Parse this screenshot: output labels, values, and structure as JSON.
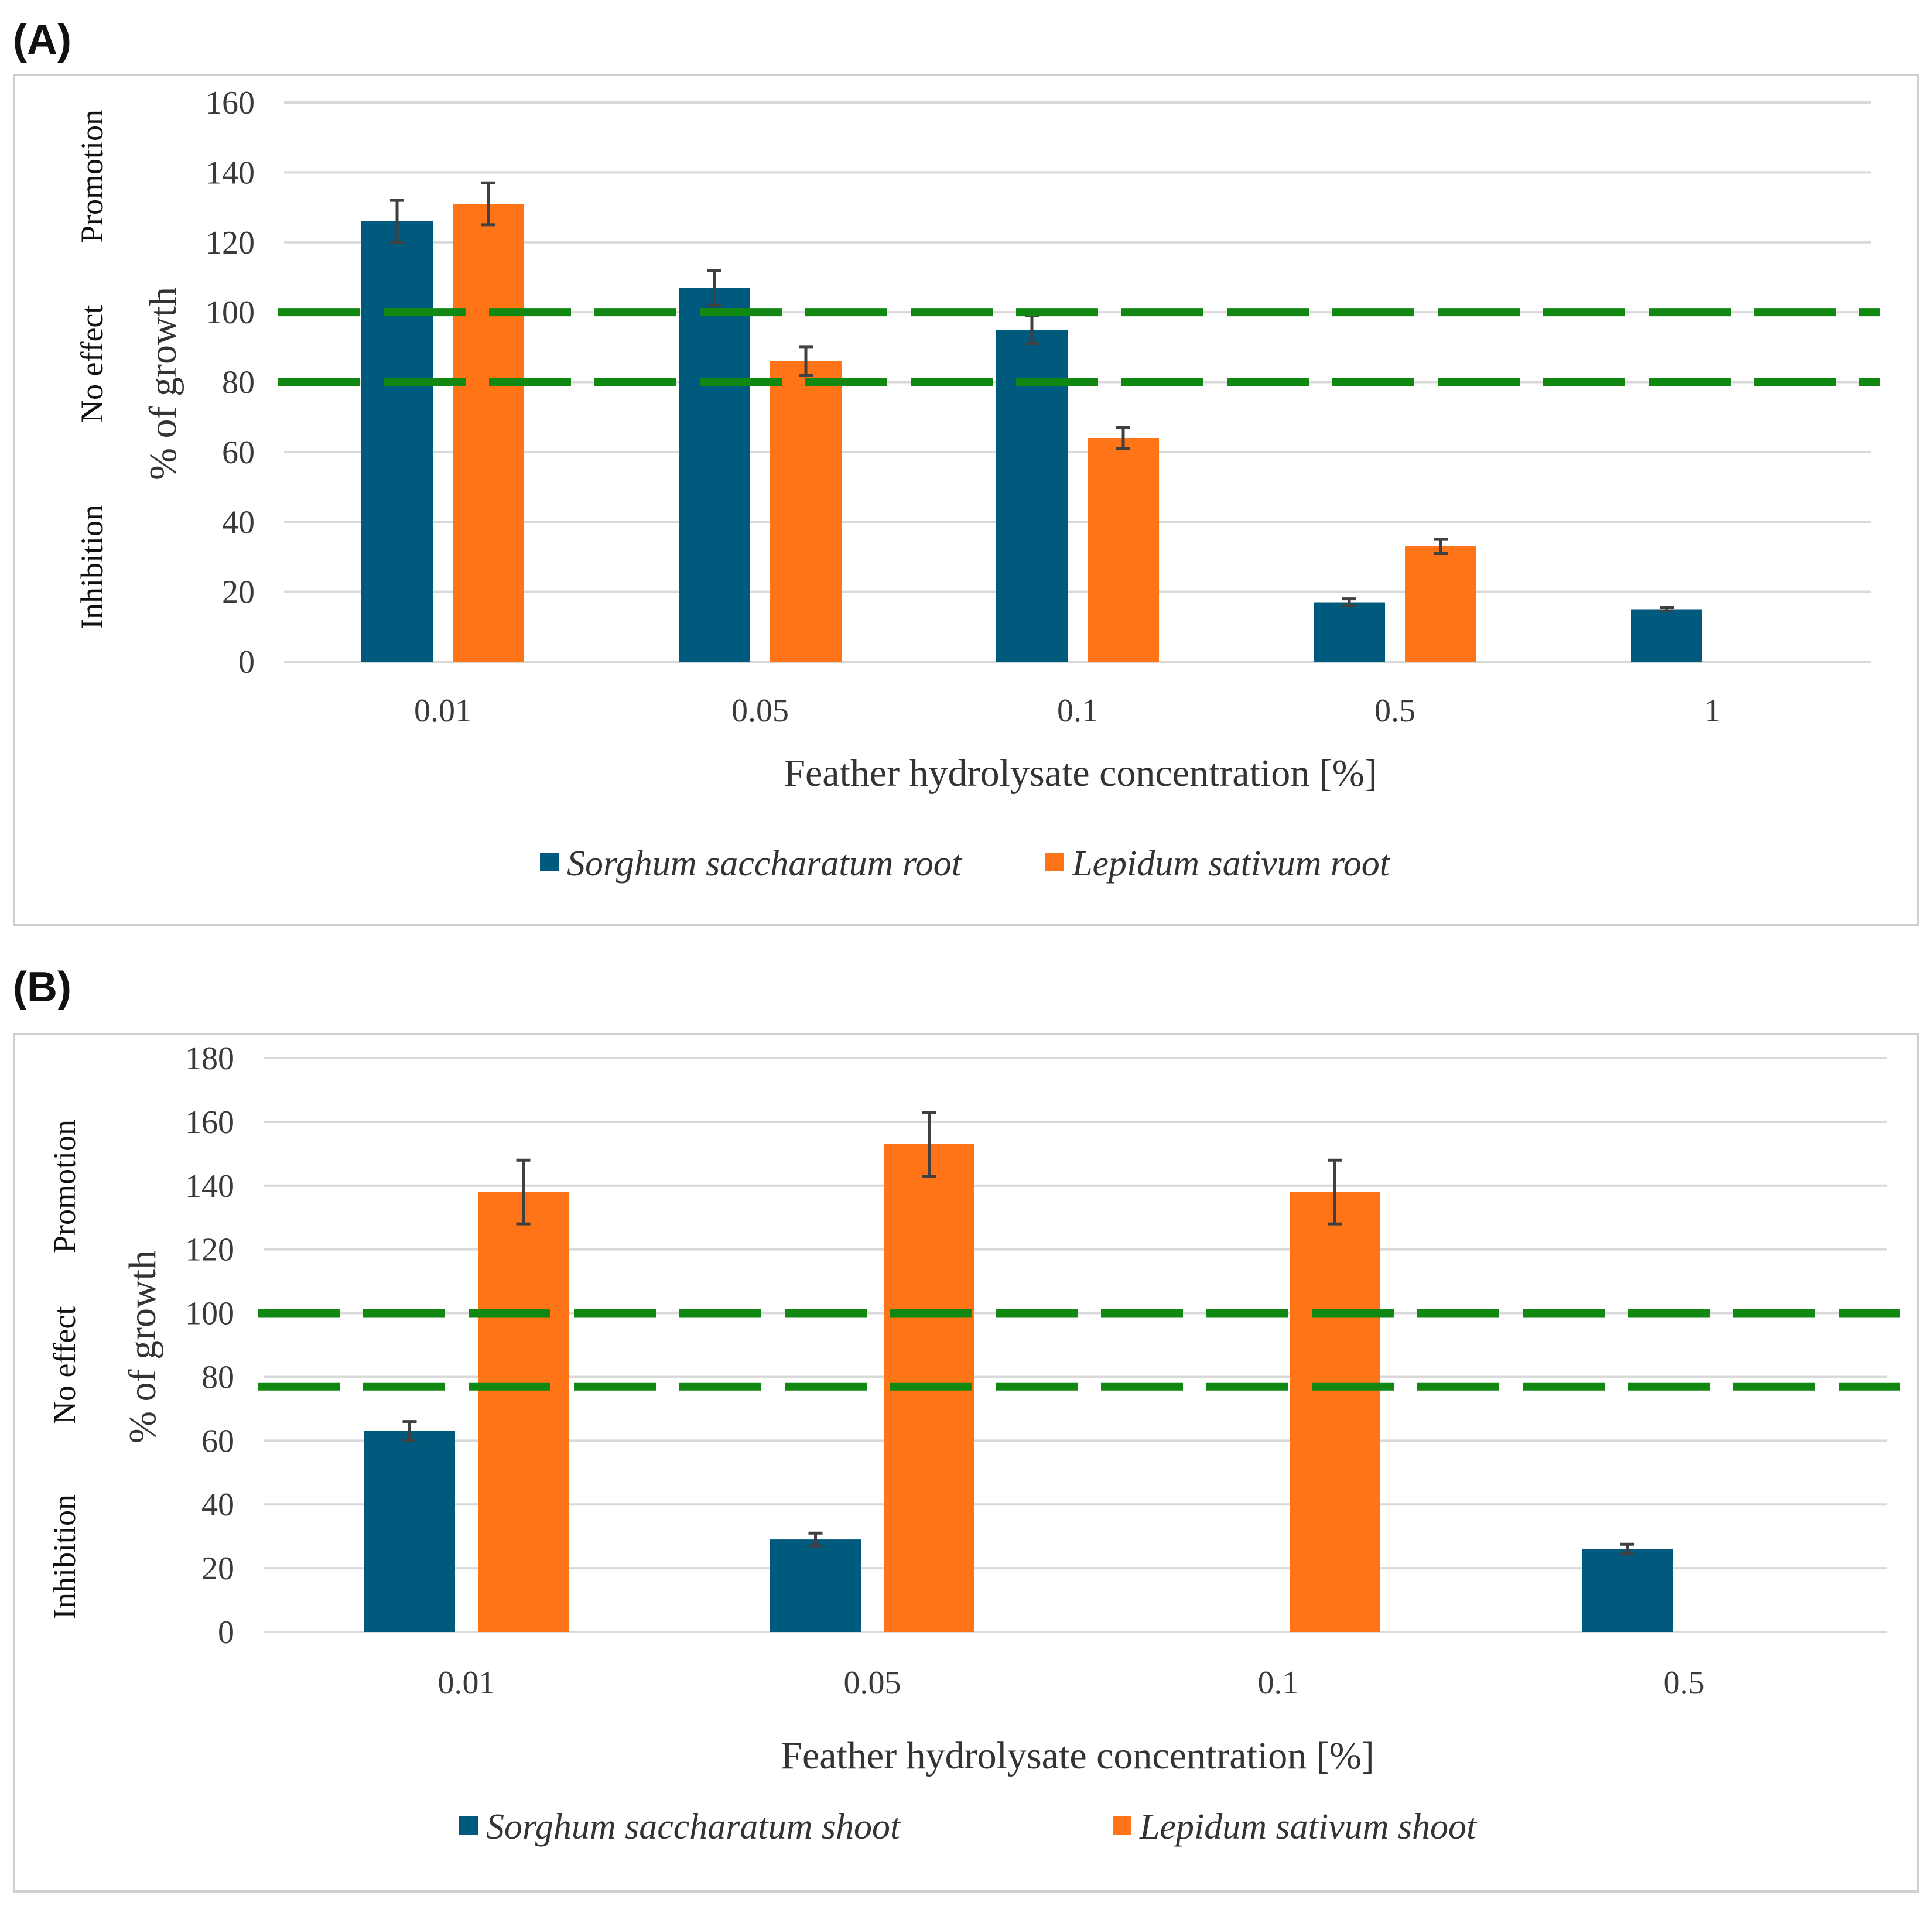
{
  "chart_data": [
    {
      "panel_label": "(A)",
      "type": "bar",
      "xlabel": "Feather hydrolysate concentration [%]",
      "ylabel": "% of growth",
      "ylim": [
        0,
        160
      ],
      "yticks": [
        0,
        20,
        40,
        60,
        80,
        100,
        120,
        140,
        160
      ],
      "categories": [
        "0.01",
        "0.05",
        "0.1",
        "0.5",
        "1"
      ],
      "series": [
        {
          "name": "Sorghum saccharatum root",
          "color": "#005a7d",
          "values": [
            126,
            107,
            95,
            17,
            15
          ],
          "errors": [
            6,
            5,
            4,
            1,
            0.5
          ]
        },
        {
          "name": "Lepidum sativum root",
          "color": "#ff7416",
          "values": [
            131,
            86,
            64,
            33,
            null
          ],
          "errors": [
            6,
            4,
            3,
            2,
            null
          ]
        }
      ],
      "thresholds": [
        100,
        80
      ],
      "threshold_color": "#118811",
      "regions": [
        "Promotion",
        "No effect",
        "Inhibition"
      ],
      "legend_position": "bottom-center",
      "grid": true
    },
    {
      "panel_label": "(B)",
      "type": "bar",
      "xlabel": "Feather hydrolysate concentration [%]",
      "ylabel": "% of growth",
      "ylim": [
        0,
        180
      ],
      "yticks": [
        0,
        20,
        40,
        60,
        80,
        100,
        120,
        140,
        160,
        180
      ],
      "categories": [
        "0.01",
        "0.05",
        "0.1",
        "0.5"
      ],
      "series": [
        {
          "name": "Sorghum saccharatum shoot",
          "color": "#005a7d",
          "values": [
            63,
            29,
            null,
            26
          ],
          "errors": [
            3,
            2,
            null,
            1.5
          ]
        },
        {
          "name": "Lepidum sativum shoot",
          "color": "#ff7416",
          "values": [
            138,
            153,
            138,
            null
          ],
          "errors": [
            10,
            10,
            10,
            null
          ]
        }
      ],
      "thresholds": [
        100,
        77
      ],
      "threshold_color": "#118811",
      "regions": [
        "Promotion",
        "No effect",
        "Inhibition"
      ],
      "legend_position": "bottom-center",
      "grid": true
    }
  ]
}
